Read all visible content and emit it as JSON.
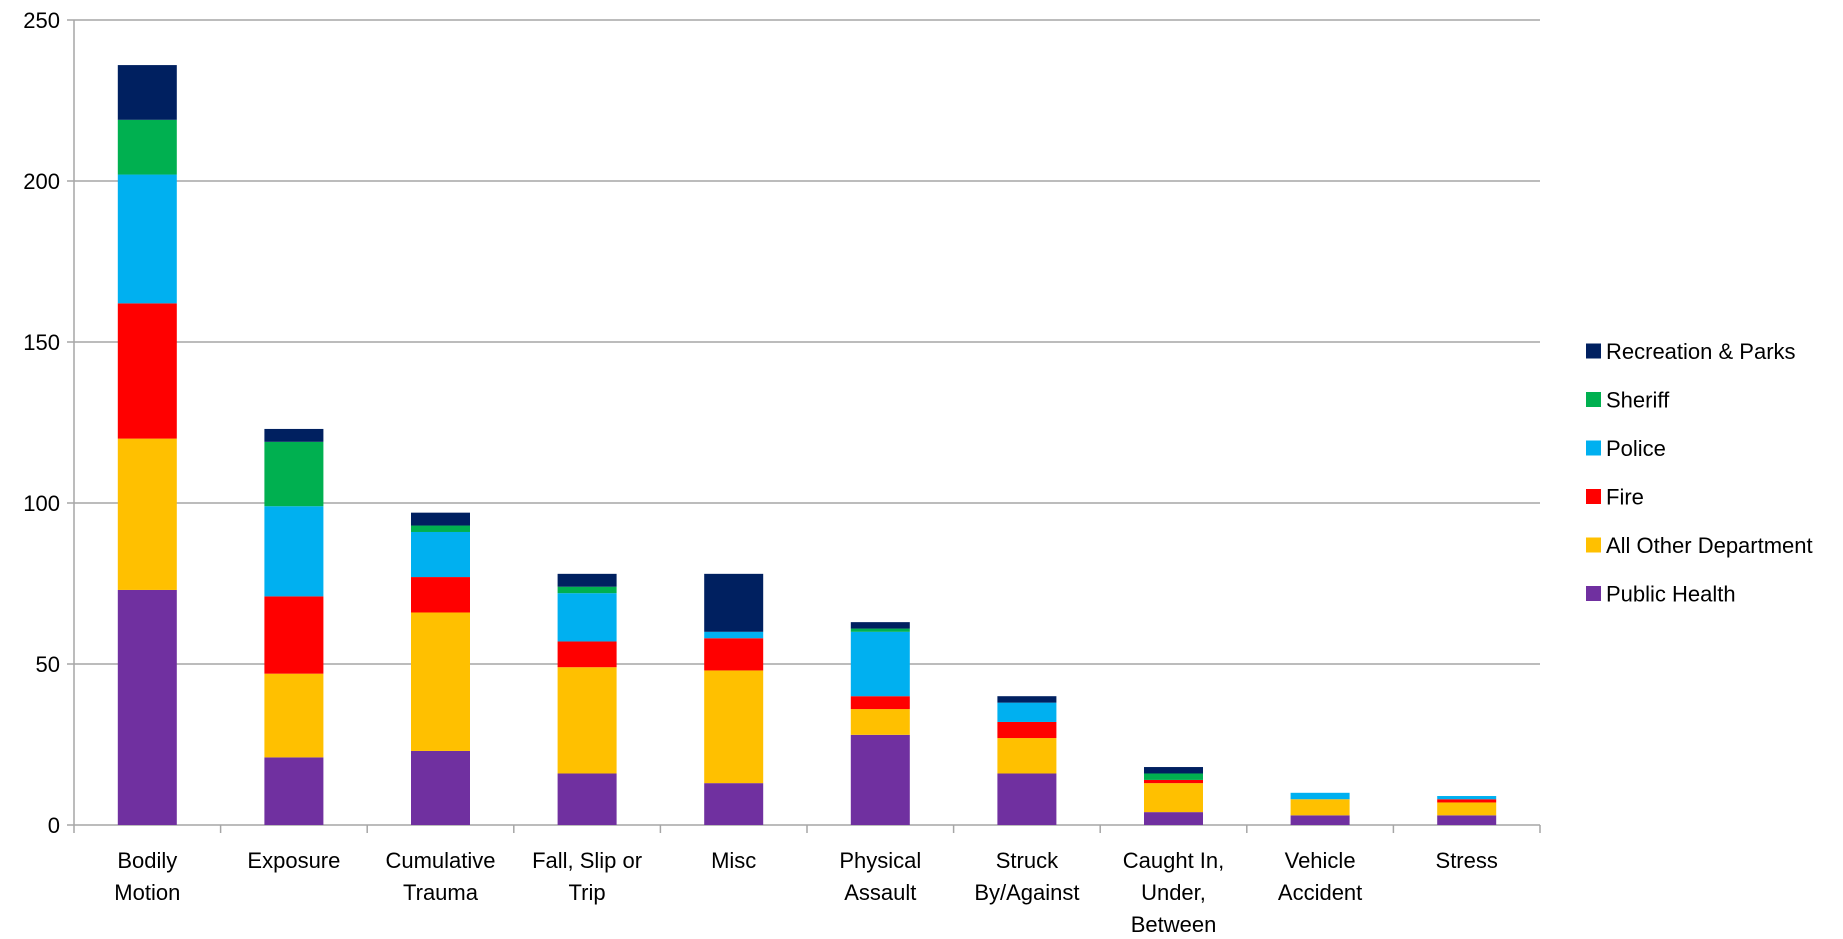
{
  "chart_data": {
    "type": "bar",
    "stacked": true,
    "categories": [
      [
        "Bodily",
        "Motion"
      ],
      [
        "Exposure"
      ],
      [
        "Cumulative",
        "Trauma"
      ],
      [
        "Fall, Slip or",
        "Trip"
      ],
      [
        "Misc"
      ],
      [
        "Physical",
        "Assault"
      ],
      [
        "Struck",
        "By/Against"
      ],
      [
        "Caught In,",
        "Under,",
        "Between"
      ],
      [
        "Vehicle",
        "Accident"
      ],
      [
        "Stress"
      ]
    ],
    "series": [
      {
        "name": "Public Health",
        "color": "#7030A0",
        "values": [
          73,
          21,
          23,
          16,
          13,
          28,
          16,
          4,
          3,
          3
        ]
      },
      {
        "name": "All Other Department",
        "color": "#FFC000",
        "values": [
          47,
          26,
          43,
          33,
          35,
          8,
          11,
          9,
          5,
          4
        ]
      },
      {
        "name": "Fire",
        "color": "#FF0000",
        "values": [
          42,
          24,
          11,
          8,
          10,
          4,
          5,
          1,
          0,
          1
        ]
      },
      {
        "name": "Police",
        "color": "#00B0F0",
        "values": [
          40,
          28,
          14,
          15,
          2,
          20,
          6,
          0,
          2,
          1
        ]
      },
      {
        "name": "Sheriff",
        "color": "#00B050",
        "values": [
          17,
          20,
          2,
          2,
          0,
          1,
          0,
          2,
          0,
          0
        ]
      },
      {
        "name": "Recreation & Parks",
        "color": "#002060",
        "values": [
          17,
          4,
          4,
          4,
          18,
          2,
          2,
          2,
          0,
          0
        ]
      }
    ],
    "ylim": [
      0,
      250
    ],
    "yticks": [
      0,
      50,
      100,
      150,
      200,
      250
    ],
    "grid": true,
    "legend_position": "right",
    "title": "",
    "xlabel": "",
    "ylabel": ""
  }
}
